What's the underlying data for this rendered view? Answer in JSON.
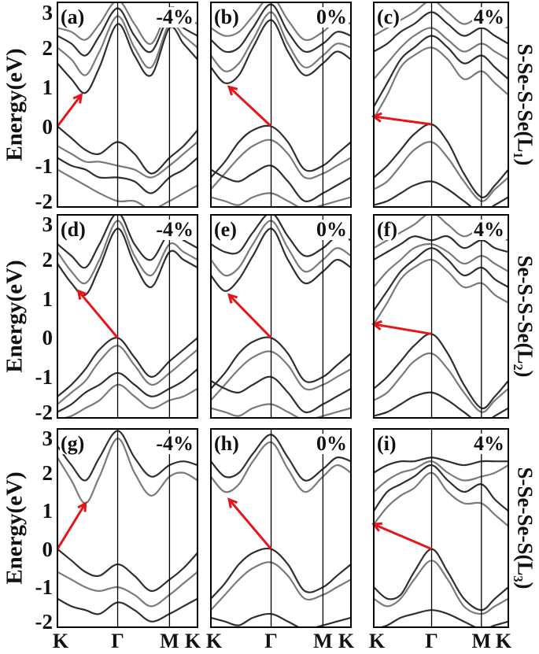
{
  "chart_data": {
    "type": "line",
    "layout": "3x3 grid of band structure panels",
    "ylabel": "Energy(eV)",
    "ylim": [
      -2.05,
      3.15
    ],
    "yticks": [
      "3",
      "2",
      "1",
      "0",
      "-1",
      "-2"
    ],
    "xticks": [
      "K",
      "Γ",
      "M",
      "K"
    ],
    "xtick_positions": [
      0,
      0.43,
      0.8,
      1
    ],
    "grid": false,
    "colors": {
      "band_dark": "#2f2f2f",
      "band_light": "#7a7a7a",
      "arrow": "#e3161c",
      "frame": "#000000"
    },
    "k": [
      0,
      0.1,
      0.2,
      0.3,
      0.43,
      0.55,
      0.67,
      0.8,
      0.9,
      1
    ],
    "row_labels": [
      "S-Se-S-Se(L₁)",
      "Se-S-S-Se(L₂)",
      "S-Se-Se-S(L₃)"
    ],
    "panels": [
      {
        "label": "(a)",
        "strain": "-4%",
        "arrow": {
          "from": [
            0,
            0
          ],
          "to": [
            0.17,
            0.8
          ]
        },
        "bands": [
          [
            0,
            -0.3,
            -0.6,
            -0.7,
            -0.4,
            -0.7,
            -1.2,
            -0.8,
            -0.5,
            -0.1
          ],
          [
            -0.5,
            -0.7,
            -0.9,
            -0.9,
            -1.0,
            -1.1,
            -1.3,
            -1.0,
            -0.7,
            -0.4
          ],
          [
            -0.8,
            -1.0,
            -1.1,
            -1.3,
            -1.3,
            -1.4,
            -1.7,
            -1.3,
            -1.1,
            -0.8
          ],
          [
            -1.1,
            -1.3,
            -1.5,
            -1.7,
            -1.9,
            -1.9,
            -2.1,
            -1.9,
            -1.7,
            -1.5
          ],
          [
            1.6,
            1.2,
            0.85,
            1.5,
            2.6,
            1.8,
            1.3,
            2.5,
            2.1,
            1.7
          ],
          [
            2.0,
            1.7,
            1.3,
            1.9,
            2.8,
            2.0,
            1.5,
            2.6,
            2.3,
            2.0
          ],
          [
            2.3,
            2.1,
            1.8,
            2.3,
            3.0,
            2.3,
            1.9,
            2.8,
            2.5,
            2.3
          ],
          [
            2.5,
            2.4,
            2.2,
            2.6,
            3.2,
            2.6,
            2.1,
            3.0,
            2.8,
            2.6
          ]
        ]
      },
      {
        "label": "(b)",
        "strain": "0%",
        "arrow": {
          "from": [
            0.43,
            0
          ],
          "to": [
            0.13,
            1.0
          ]
        },
        "bands": [
          [
            -1.3,
            -0.9,
            -0.4,
            -0.1,
            0,
            -0.4,
            -1.1,
            -1.0,
            -0.7,
            -0.4
          ],
          [
            -1.6,
            -1.2,
            -0.8,
            -0.5,
            -0.35,
            -0.7,
            -1.3,
            -1.2,
            -1.0,
            -0.8
          ],
          [
            -1.1,
            -1.3,
            -1.4,
            -1.2,
            -1.0,
            -1.4,
            -1.9,
            -1.7,
            -1.5,
            -1.3
          ],
          [
            -1.8,
            -1.9,
            -2.0,
            -1.8,
            -1.7,
            -1.9,
            -2.1,
            -2.0,
            -1.9,
            -1.8
          ],
          [
            1.5,
            1.1,
            1.3,
            2.0,
            2.7,
            1.9,
            1.3,
            1.6,
            1.9,
            1.7
          ],
          [
            1.8,
            1.4,
            1.6,
            2.2,
            2.9,
            2.1,
            1.5,
            1.8,
            2.1,
            2.0
          ],
          [
            2.2,
            1.9,
            2.0,
            2.5,
            3.1,
            2.4,
            1.9,
            2.1,
            2.4,
            2.3
          ],
          [
            2.5,
            2.3,
            2.4,
            2.8,
            3.3,
            2.7,
            2.2,
            2.4,
            2.7,
            2.6
          ]
        ]
      },
      {
        "label": "(c)",
        "strain": "4%",
        "arrow": {
          "from": [
            0.43,
            0.05
          ],
          "to": [
            0,
            0.25
          ]
        },
        "bands": [
          [
            -1.3,
            -1.0,
            -0.6,
            -0.2,
            0.05,
            -0.4,
            -1.2,
            -1.8,
            -1.5,
            -1.1
          ],
          [
            -1.6,
            -1.4,
            -1.0,
            -0.6,
            -0.4,
            -0.8,
            -1.4,
            -1.9,
            -1.6,
            -1.3
          ],
          [
            -2.0,
            -1.9,
            -1.7,
            -1.5,
            -1.4,
            -1.6,
            -1.9,
            -2.2,
            -2.0,
            -1.8
          ],
          [
            0.2,
            0.8,
            1.5,
            1.8,
            2.0,
            1.7,
            1.2,
            1.4,
            1.1,
            0.8
          ],
          [
            0.5,
            1.1,
            1.7,
            2.0,
            2.3,
            2.0,
            1.6,
            1.8,
            1.5,
            1.2
          ],
          [
            1.2,
            1.6,
            2.0,
            2.3,
            2.5,
            2.2,
            1.9,
            2.1,
            1.9,
            1.7
          ],
          [
            1.9,
            2.1,
            2.4,
            2.6,
            2.9,
            2.6,
            2.3,
            2.5,
            2.3,
            2.1
          ],
          [
            2.3,
            2.5,
            2.7,
            2.9,
            3.2,
            2.9,
            2.6,
            2.8,
            2.6,
            2.5
          ]
        ]
      },
      {
        "label": "(d)",
        "strain": "-4%",
        "arrow": {
          "from": [
            0.43,
            0
          ],
          "to": [
            0.15,
            1.2
          ]
        },
        "bands": [
          [
            -1.5,
            -1.2,
            -0.8,
            -0.3,
            0,
            -0.5,
            -1.0,
            -0.6,
            -0.3,
            0
          ],
          [
            -1.7,
            -1.4,
            -1.1,
            -0.6,
            -0.2,
            -0.7,
            -1.2,
            -0.9,
            -0.6,
            -0.3
          ],
          [
            -1.9,
            -1.7,
            -1.4,
            -1.2,
            -0.9,
            -1.2,
            -1.5,
            -1.3,
            -1.1,
            -0.8
          ],
          [
            -2.1,
            -2.0,
            -1.8,
            -1.6,
            -1.2,
            -1.5,
            -1.8,
            -1.6,
            -1.5,
            -1.3
          ],
          [
            1.9,
            1.4,
            1.1,
            1.8,
            2.8,
            1.9,
            1.3,
            2.2,
            2.0,
            1.8
          ],
          [
            2.2,
            1.7,
            1.4,
            2.0,
            3.0,
            2.1,
            1.6,
            2.4,
            2.2,
            2.0
          ],
          [
            2.4,
            2.1,
            1.8,
            2.4,
            3.2,
            2.4,
            2.0,
            2.7,
            2.5,
            2.3
          ]
        ]
      },
      {
        "label": "(e)",
        "strain": "0%",
        "arrow": {
          "from": [
            0.43,
            0
          ],
          "to": [
            0.13,
            1.1
          ]
        },
        "bands": [
          [
            -1.3,
            -0.9,
            -0.4,
            -0.1,
            0,
            -0.4,
            -1.1,
            -1.0,
            -0.7,
            -0.4
          ],
          [
            -1.6,
            -1.2,
            -0.8,
            -0.5,
            -0.35,
            -0.7,
            -1.3,
            -1.2,
            -1.0,
            -0.8
          ],
          [
            -1.1,
            -1.3,
            -1.4,
            -1.2,
            -1.0,
            -1.4,
            -1.9,
            -1.7,
            -1.5,
            -1.3
          ],
          [
            -1.8,
            -1.9,
            -2.0,
            -1.8,
            -1.7,
            -1.9,
            -2.1,
            -2.0,
            -1.9,
            -1.8
          ],
          [
            1.6,
            1.2,
            1.5,
            2.1,
            2.8,
            2.0,
            1.4,
            1.7,
            2.0,
            1.8
          ],
          [
            2.0,
            1.6,
            1.8,
            2.4,
            3.0,
            2.3,
            1.7,
            2.0,
            2.3,
            2.1
          ],
          [
            2.4,
            2.2,
            2.2,
            2.7,
            3.2,
            2.6,
            2.1,
            2.3,
            2.6,
            2.5
          ]
        ]
      },
      {
        "label": "(f)",
        "strain": "4%",
        "arrow": {
          "from": [
            0.43,
            0.1
          ],
          "to": [
            0,
            0.35
          ]
        },
        "bands": [
          [
            -1.3,
            -1.0,
            -0.6,
            -0.2,
            0.1,
            -0.4,
            -1.2,
            -1.8,
            -1.5,
            -1.1
          ],
          [
            -1.6,
            -1.4,
            -1.0,
            -0.6,
            -0.4,
            -0.8,
            -1.4,
            -1.9,
            -1.6,
            -1.3
          ],
          [
            -2.0,
            -1.9,
            -1.7,
            -1.5,
            -1.4,
            -1.6,
            -1.9,
            -2.2,
            -2.0,
            -1.8
          ],
          [
            0.35,
            0.9,
            1.5,
            1.8,
            2.0,
            1.7,
            1.3,
            1.4,
            1.1,
            0.9
          ],
          [
            0.7,
            1.2,
            1.7,
            2.0,
            2.3,
            2.0,
            1.6,
            1.8,
            1.5,
            1.3
          ],
          [
            1.3,
            1.7,
            2.0,
            2.3,
            2.4,
            2.2,
            1.9,
            2.1,
            1.9,
            1.7
          ],
          [
            2.0,
            2.2,
            2.4,
            2.6,
            2.5,
            2.6,
            2.3,
            2.5,
            2.3,
            2.2
          ],
          [
            2.3,
            2.5,
            2.7,
            2.9,
            3.2,
            2.9,
            2.6,
            2.8,
            2.6,
            2.5
          ]
        ]
      },
      {
        "label": "(g)",
        "strain": "-4%",
        "arrow": {
          "from": [
            0,
            0
          ],
          "to": [
            0.2,
            1.2
          ]
        },
        "bands": [
          [
            0,
            -0.3,
            -0.6,
            -0.7,
            -0.4,
            -0.7,
            -1.1,
            -0.8,
            -0.5,
            -0.1
          ],
          [
            -0.6,
            -0.8,
            -1.0,
            -1.1,
            -1.0,
            -1.2,
            -1.5,
            -1.2,
            -0.9,
            -0.6
          ],
          [
            -1.3,
            -1.5,
            -1.6,
            -1.7,
            -1.4,
            -1.6,
            -1.9,
            -1.7,
            -1.5,
            -1.3
          ],
          [
            2.4,
            1.8,
            1.2,
            1.9,
            2.9,
            2.0,
            1.4,
            1.9,
            2.0,
            1.8
          ],
          [
            2.7,
            2.2,
            1.8,
            2.4,
            3.1,
            2.4,
            1.9,
            2.2,
            2.3,
            2.2
          ]
        ]
      },
      {
        "label": "(h)",
        "strain": "0%",
        "arrow": {
          "from": [
            0.43,
            0
          ],
          "to": [
            0.13,
            1.3
          ]
        },
        "bands": [
          [
            -1.3,
            -0.9,
            -0.4,
            -0.1,
            0,
            -0.4,
            -1.1,
            -1.0,
            -0.7,
            -0.4
          ],
          [
            -1.6,
            -1.2,
            -0.8,
            -0.5,
            -0.35,
            -0.7,
            -1.3,
            -1.2,
            -1.0,
            -0.8
          ],
          [
            -1.8,
            -1.9,
            -2.0,
            -1.8,
            -1.7,
            -1.9,
            -2.1,
            -2.0,
            -1.9,
            -1.8
          ],
          [
            1.9,
            1.5,
            1.7,
            2.3,
            2.8,
            2.1,
            1.5,
            1.9,
            2.2,
            2.0
          ],
          [
            2.3,
            1.9,
            2.0,
            2.5,
            3.0,
            2.4,
            1.8,
            2.1,
            2.4,
            2.3
          ]
        ]
      },
      {
        "label": "(i)",
        "strain": "4%",
        "arrow": {
          "from": [
            0.43,
            0
          ],
          "to": [
            0,
            0.65
          ]
        },
        "bands": [
          [
            -1.0,
            -1.3,
            -1.2,
            -0.6,
            0,
            -0.6,
            -1.3,
            -1.6,
            -1.3,
            -1.0
          ],
          [
            -1.3,
            -1.5,
            -1.3,
            -0.8,
            -0.3,
            -0.8,
            -1.5,
            -1.7,
            -1.5,
            -1.3
          ],
          [
            -2.1,
            -2.0,
            -1.8,
            -1.7,
            -1.6,
            -1.7,
            -1.9,
            -2.1,
            -2.0,
            -1.9
          ],
          [
            0.65,
            1.1,
            1.4,
            1.6,
            2.0,
            1.5,
            1.2,
            1.2,
            0.9,
            0.6
          ],
          [
            1.0,
            1.5,
            1.7,
            1.9,
            2.2,
            1.8,
            1.5,
            1.7,
            1.3,
            1.0
          ],
          [
            1.5,
            1.8,
            2.0,
            2.1,
            2.3,
            2.0,
            1.8,
            1.9,
            2.0,
            2.2
          ],
          [
            2.0,
            2.2,
            2.3,
            2.3,
            2.4,
            2.3,
            2.2,
            2.3,
            2.3,
            2.3
          ]
        ]
      }
    ]
  }
}
